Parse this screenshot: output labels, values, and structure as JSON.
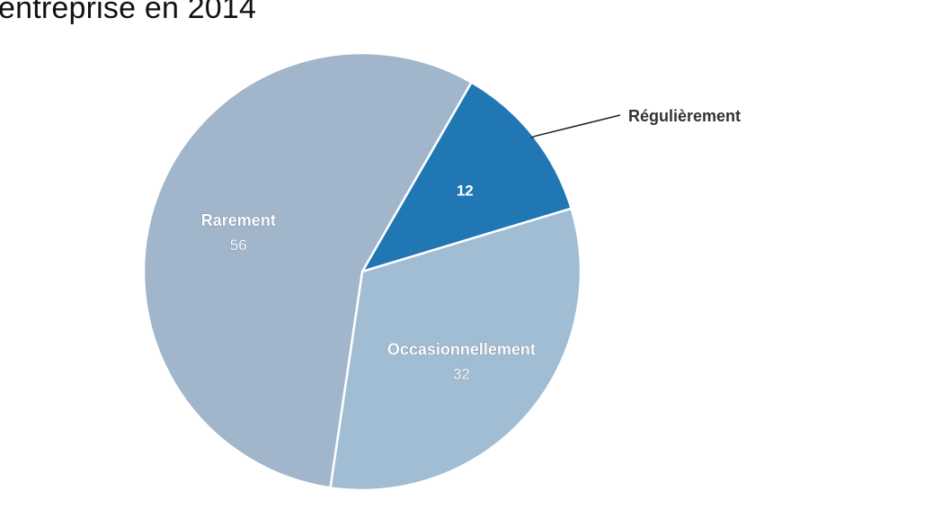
{
  "chart_data": {
    "type": "pie",
    "title": "entreprise en 2014",
    "slices": [
      {
        "name": "Régulièrement",
        "value": 12,
        "color": "#2077b4",
        "label_position": "outside",
        "show_name": true,
        "show_value": true
      },
      {
        "name": "Occasionnellement",
        "value": 32,
        "color": "#a0bdd4",
        "label_position": "inside",
        "show_name": true,
        "show_value": true
      },
      {
        "name": "Rarement",
        "value": 56,
        "color": "#a1b5cb",
        "label_position": "inside",
        "show_name": true,
        "show_value": true
      }
    ],
    "start_angle_deg": 30,
    "direction": "clockwise",
    "legend": "none"
  }
}
